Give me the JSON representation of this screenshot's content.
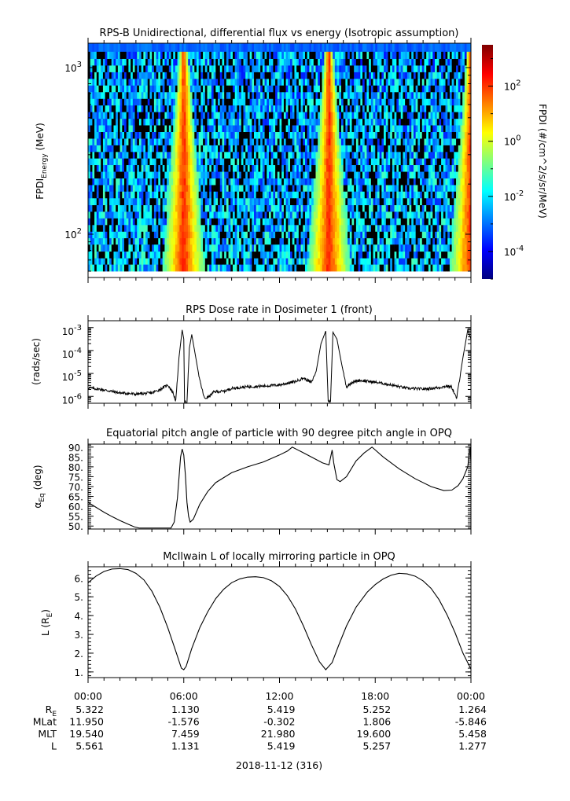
{
  "figure": {
    "date_label": "2018-11-12 (316)",
    "time_ticks": [
      "00:00",
      "06:00",
      "12:00",
      "18:00",
      "00:00"
    ],
    "ephemeris": {
      "rows": [
        {
          "label": "R",
          "label_sub": "E",
          "values": [
            "5.322",
            "1.130",
            "5.419",
            "5.252",
            "1.264"
          ]
        },
        {
          "label": "MLat",
          "label_sub": "",
          "values": [
            "11.950",
            "-1.576",
            "-0.302",
            "1.806",
            "-5.846"
          ]
        },
        {
          "label": "MLT",
          "label_sub": "",
          "values": [
            "19.540",
            "7.459",
            "21.980",
            "19.600",
            "5.458"
          ]
        },
        {
          "label": "L",
          "label_sub": "",
          "values": [
            "5.561",
            "1.131",
            "5.419",
            "5.257",
            "1.277"
          ]
        }
      ]
    }
  },
  "chart_data": [
    {
      "type": "heatmap",
      "title": "RPS-B  Unidirectional, differential flux vs energy (Isotropic assumption)",
      "ylabel": {
        "main": "FPDI",
        "sub": "Energy",
        "unit": " (MeV)"
      },
      "yscale": "log",
      "ylim": [
        55,
        1400
      ],
      "y_ticks": [
        {
          "value": 100,
          "base": "10",
          "exp": "2"
        },
        {
          "value": 1000,
          "base": "10",
          "exp": "3"
        }
      ],
      "x_hours": [
        0,
        24
      ],
      "energy_bins_mev": [
        60,
        66,
        72,
        79,
        87,
        95,
        104,
        114,
        125,
        137,
        150,
        165,
        181,
        198,
        217,
        238,
        261,
        286,
        313,
        343,
        376,
        412,
        452,
        495,
        543,
        595,
        652,
        715,
        784,
        859,
        942,
        1033,
        1132,
        1250
      ],
      "peak_flux_times_h": [
        6.0,
        15.1,
        24.0
      ],
      "colorbar": {
        "label": "FPDI (#/cm^2/s/sr/MeV)",
        "scale": "log",
        "range_log10": [
          -5,
          3.5
        ],
        "ticks": [
          {
            "log10": 2,
            "base": "10",
            "exp": "2"
          },
          {
            "log10": 0,
            "base": "10",
            "exp": "0"
          },
          {
            "log10": -2,
            "base": "10",
            "exp": "-2"
          },
          {
            "log10": -4,
            "base": "10",
            "exp": "-4"
          }
        ],
        "colormap": [
          "#00007f",
          "#0000ff",
          "#007fff",
          "#00ffff",
          "#7fff7f",
          "#ffff00",
          "#ff7f00",
          "#ff0000",
          "#7f0000"
        ]
      }
    },
    {
      "type": "line",
      "title": "RPS  Dose rate in Dosimeter 1 (front)",
      "ylabel": "(rads/sec)",
      "yscale": "log",
      "ylim_log10": [
        -6.3,
        -2.7
      ],
      "y_ticks": [
        {
          "log10": -3,
          "base": "10",
          "exp": "-3"
        },
        {
          "log10": -4,
          "base": "10",
          "exp": "-4"
        },
        {
          "log10": -5,
          "base": "10",
          "exp": "-5"
        },
        {
          "log10": -6,
          "base": "10",
          "exp": "-6"
        }
      ],
      "x_hours": [
        0,
        24
      ],
      "series": [
        {
          "points_log10": [
            [
              0,
              -5.62
            ],
            [
              1,
              -5.72
            ],
            [
              2,
              -5.85
            ],
            [
              3,
              -5.9
            ],
            [
              4,
              -5.85
            ],
            [
              4.5,
              -5.7
            ],
            [
              5,
              -5.5
            ],
            [
              5.3,
              -5.8
            ],
            [
              5.5,
              -6.2
            ],
            [
              5.7,
              -4.3
            ],
            [
              5.9,
              -3.1
            ],
            [
              6.0,
              -3.5
            ],
            [
              6.05,
              -6.25
            ],
            [
              6.2,
              -6.25
            ],
            [
              6.35,
              -3.9
            ],
            [
              6.5,
              -3.3
            ],
            [
              6.7,
              -4.1
            ],
            [
              7.0,
              -5.3
            ],
            [
              7.3,
              -6.1
            ],
            [
              7.6,
              -6.0
            ],
            [
              7.9,
              -5.8
            ],
            [
              8.5,
              -5.78
            ],
            [
              9,
              -5.65
            ],
            [
              10,
              -5.58
            ],
            [
              11,
              -5.55
            ],
            [
              12,
              -5.5
            ],
            [
              13,
              -5.35
            ],
            [
              13.5,
              -5.2
            ],
            [
              14.0,
              -5.4
            ],
            [
              14.3,
              -4.9
            ],
            [
              14.6,
              -3.7
            ],
            [
              14.9,
              -3.15
            ],
            [
              15.05,
              -6.2
            ],
            [
              15.2,
              -6.2
            ],
            [
              15.35,
              -3.2
            ],
            [
              15.6,
              -3.5
            ],
            [
              15.9,
              -4.6
            ],
            [
              16.2,
              -5.6
            ],
            [
              16.5,
              -5.4
            ],
            [
              17,
              -5.3
            ],
            [
              18,
              -5.38
            ],
            [
              19,
              -5.5
            ],
            [
              20,
              -5.65
            ],
            [
              21,
              -5.68
            ],
            [
              22,
              -5.62
            ],
            [
              22.5,
              -5.55
            ],
            [
              22.8,
              -5.6
            ],
            [
              23.1,
              -6.1
            ],
            [
              23.5,
              -4.3
            ],
            [
              23.8,
              -3.1
            ],
            [
              24,
              -3.5
            ]
          ]
        }
      ]
    },
    {
      "type": "line",
      "title": "Equatorial pitch angle of particle with 90 degree pitch angle in OPQ",
      "ylabel": {
        "main": "α",
        "sub": "Eq",
        "unit": " (deg)"
      },
      "ylim": [
        48.5,
        91.5
      ],
      "y_ticks": [
        90.0,
        85.0,
        80.0,
        75.0,
        70.0,
        65.0,
        60.0,
        55.0,
        50.0
      ],
      "y_tick_labels": [
        "90.",
        "85.",
        "80.",
        "75.",
        "70.",
        "65.",
        "60.",
        "55.",
        "50."
      ],
      "x_hours": [
        0,
        24
      ],
      "series": [
        {
          "points": [
            [
              0,
              62
            ],
            [
              0.5,
              59.5
            ],
            [
              1,
              57
            ],
            [
              1.5,
              54.8
            ],
            [
              2,
              52.8
            ],
            [
              2.5,
              51
            ],
            [
              2.9,
              49.6
            ],
            [
              3.2,
              49
            ],
            [
              5.2,
              49
            ],
            [
              5.4,
              52
            ],
            [
              5.6,
              64
            ],
            [
              5.8,
              85
            ],
            [
              5.9,
              89
            ],
            [
              6.0,
              86
            ],
            [
              6.1,
              76
            ],
            [
              6.2,
              62
            ],
            [
              6.3,
              55
            ],
            [
              6.4,
              52
            ],
            [
              6.6,
              53.5
            ],
            [
              7.0,
              61
            ],
            [
              7.5,
              67.5
            ],
            [
              8,
              72
            ],
            [
              9,
              77
            ],
            [
              10,
              80
            ],
            [
              11,
              82.5
            ],
            [
              12,
              86
            ],
            [
              12.5,
              88
            ],
            [
              12.8,
              90
            ],
            [
              13.4,
              87.5
            ],
            [
              14,
              85
            ],
            [
              14.7,
              82
            ],
            [
              15.1,
              81
            ],
            [
              15.3,
              88.5
            ],
            [
              15.4,
              82
            ],
            [
              15.6,
              73.5
            ],
            [
              15.8,
              72.5
            ],
            [
              16.2,
              75
            ],
            [
              16.8,
              83
            ],
            [
              17.3,
              87
            ],
            [
              17.8,
              90
            ],
            [
              18.5,
              85
            ],
            [
              19.5,
              79
            ],
            [
              20.5,
              74
            ],
            [
              21.5,
              70
            ],
            [
              22.3,
              68
            ],
            [
              22.8,
              68.2
            ],
            [
              23.2,
              70.5
            ],
            [
              23.5,
              74
            ],
            [
              23.8,
              80
            ],
            [
              23.95,
              90
            ],
            [
              24,
              82
            ]
          ]
        }
      ]
    },
    {
      "type": "line",
      "title": "McIlwain L of locally mirroring particle in OPQ",
      "ylabel": {
        "main": "L (R",
        "sub": "E",
        "unit": ")"
      },
      "ylim": [
        0.7,
        6.6
      ],
      "y_ticks": [
        1,
        2,
        3,
        4,
        5,
        6
      ],
      "y_tick_labels": [
        "1.",
        "2.",
        "3.",
        "4.",
        "5.",
        "6."
      ],
      "x_hours": [
        0,
        24
      ],
      "series": [
        {
          "points": [
            [
              0,
              5.75
            ],
            [
              0.5,
              6.1
            ],
            [
              1,
              6.35
            ],
            [
              1.5,
              6.48
            ],
            [
              2,
              6.5
            ],
            [
              2.5,
              6.45
            ],
            [
              3,
              6.25
            ],
            [
              3.5,
              5.9
            ],
            [
              4,
              5.3
            ],
            [
              4.5,
              4.45
            ],
            [
              5,
              3.35
            ],
            [
              5.5,
              2.1
            ],
            [
              5.85,
              1.2
            ],
            [
              6.0,
              1.12
            ],
            [
              6.15,
              1.3
            ],
            [
              6.5,
              2.25
            ],
            [
              7,
              3.35
            ],
            [
              7.5,
              4.2
            ],
            [
              8,
              4.9
            ],
            [
              8.5,
              5.4
            ],
            [
              9,
              5.75
            ],
            [
              9.5,
              5.95
            ],
            [
              10,
              6.05
            ],
            [
              10.5,
              6.07
            ],
            [
              11,
              6.02
            ],
            [
              11.5,
              5.85
            ],
            [
              12,
              5.55
            ],
            [
              12.5,
              5.05
            ],
            [
              13,
              4.35
            ],
            [
              13.5,
              3.45
            ],
            [
              14,
              2.45
            ],
            [
              14.5,
              1.55
            ],
            [
              14.9,
              1.12
            ],
            [
              15.3,
              1.5
            ],
            [
              15.7,
              2.4
            ],
            [
              16.2,
              3.45
            ],
            [
              16.8,
              4.45
            ],
            [
              17.5,
              5.25
            ],
            [
              18,
              5.65
            ],
            [
              18.5,
              5.95
            ],
            [
              19,
              6.15
            ],
            [
              19.5,
              6.25
            ],
            [
              20,
              6.22
            ],
            [
              20.5,
              6.1
            ],
            [
              21,
              5.85
            ],
            [
              21.5,
              5.45
            ],
            [
              22,
              4.85
            ],
            [
              22.5,
              4.05
            ],
            [
              23,
              3.1
            ],
            [
              23.5,
              2.0
            ],
            [
              24,
              1.15
            ]
          ]
        }
      ]
    }
  ]
}
